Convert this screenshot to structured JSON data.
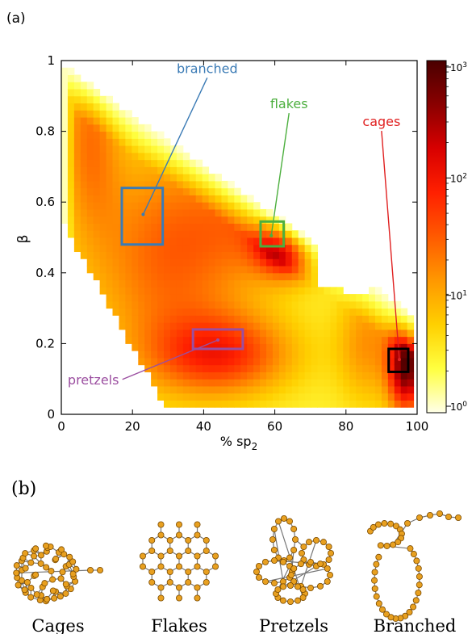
{
  "panel_a_label": "(a)",
  "panel_b_label": "(b)",
  "colorbar": {
    "ticks": [
      {
        "base": "10",
        "exp": "0"
      },
      {
        "base": "10",
        "exp": "1"
      },
      {
        "base": "10",
        "exp": "2"
      },
      {
        "base": "10",
        "exp": "3"
      }
    ],
    "colors": [
      "#ffffe8",
      "#ffff40",
      "#ffd000",
      "#ff9800",
      "#ff5a00",
      "#ff2000",
      "#d80000",
      "#8a0000",
      "#4a0000"
    ]
  },
  "chart_data": {
    "type": "heatmap",
    "title": "",
    "xlabel_main": "% sp",
    "xlabel_sub": "2",
    "ylabel": "β",
    "xlim": [
      0,
      100
    ],
    "ylim": [
      0,
      1
    ],
    "xticks": [
      0,
      20,
      40,
      60,
      80,
      100
    ],
    "yticks": [
      0,
      0.2,
      0.4,
      0.6,
      0.8,
      1
    ],
    "ytick_labels": [
      "0",
      "0.2",
      "0.4",
      "0.6",
      "0.8",
      "1"
    ],
    "color_scale": "log",
    "color_range": [
      1,
      1000
    ],
    "bin_size_x": 1.8,
    "bin_size_y": 0.02,
    "density_peaks": [
      {
        "x": 63,
        "y": 0.5,
        "count": 1000
      },
      {
        "x": 97,
        "y": 0.15,
        "count": 900
      },
      {
        "x": 45,
        "y": 0.18,
        "count": 100
      },
      {
        "x": 8,
        "y": 0.85,
        "count": 30
      }
    ],
    "regions": [
      {
        "name": "branched",
        "x": [
          17,
          28.5
        ],
        "y": [
          0.48,
          0.64
        ],
        "color": "#3b7bb5",
        "label_x": 41,
        "label_y": 0.965,
        "arrow_to_x": 23,
        "arrow_to_y": 0.565
      },
      {
        "name": "flakes",
        "x": [
          56,
          62.5
        ],
        "y": [
          0.475,
          0.545
        ],
        "color": "#4caf3e",
        "label_x": 64,
        "label_y": 0.865,
        "arrow_to_x": 59,
        "arrow_to_y": 0.505
      },
      {
        "name": "cages",
        "x": [
          92,
          97.5
        ],
        "y": [
          0.12,
          0.185
        ],
        "color": "#e02020",
        "label_x": 90,
        "label_y": 0.815,
        "arrow_to_x": 95,
        "arrow_to_y": 0.155
      },
      {
        "name": "pretzels",
        "x": [
          37,
          51
        ],
        "y": [
          0.185,
          0.24
        ],
        "color": "#9b4ea0",
        "label_x": 9,
        "label_y": 0.085,
        "arrow_to_x": 44,
        "arrow_to_y": 0.21
      }
    ],
    "black_box": {
      "x": [
        92,
        97.5
      ],
      "y": [
        0.12,
        0.185
      ]
    }
  },
  "structures": [
    {
      "label": "Cages"
    },
    {
      "label": "Flakes"
    },
    {
      "label": "Pretzels"
    },
    {
      "label": "Branched"
    }
  ]
}
